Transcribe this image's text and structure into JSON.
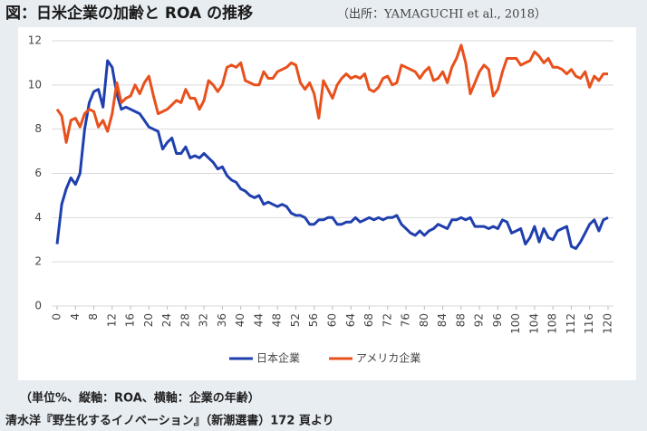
{
  "chart_data": {
    "type": "line",
    "title": "図：日米企業の加齢と ROA の推移",
    "subtitle": "（出所：YAMAGUCHI et al., 2018）",
    "notes": [
      "（単位%、縦軸：ROA、横軸：企業の年齢）",
      "清水洋『野生化するイノベーション』（新潮選書）172 頁より"
    ],
    "x": [
      0,
      1,
      2,
      3,
      4,
      5,
      6,
      7,
      8,
      9,
      10,
      11,
      12,
      13,
      14,
      15,
      16,
      17,
      18,
      19,
      20,
      21,
      22,
      23,
      24,
      25,
      26,
      27,
      28,
      29,
      30,
      31,
      32,
      33,
      34,
      35,
      36,
      37,
      38,
      39,
      40,
      41,
      42,
      43,
      44,
      45,
      46,
      47,
      48,
      49,
      50,
      51,
      52,
      53,
      54,
      55,
      56,
      57,
      58,
      59,
      60,
      61,
      62,
      63,
      64,
      65,
      66,
      67,
      68,
      69,
      70,
      71,
      72,
      73,
      74,
      75,
      76,
      77,
      78,
      79,
      80,
      81,
      82,
      83,
      84,
      85,
      86,
      87,
      88,
      89,
      90,
      91,
      92,
      93,
      94,
      95,
      96,
      97,
      98,
      99,
      100,
      101,
      102,
      103,
      104,
      105,
      106,
      107,
      108,
      109,
      110,
      111,
      112,
      113,
      114,
      115,
      116,
      117,
      118,
      119,
      120
    ],
    "series": [
      {
        "name": "日本企業",
        "color": "#1f3fae",
        "values": [
          2.8,
          4.6,
          5.3,
          5.8,
          5.5,
          6.0,
          8.0,
          9.2,
          9.7,
          9.8,
          9.0,
          11.1,
          10.8,
          9.6,
          8.9,
          9.0,
          8.9,
          8.8,
          8.7,
          8.4,
          8.1,
          8.0,
          7.9,
          7.1,
          7.4,
          7.6,
          6.9,
          6.9,
          7.2,
          6.7,
          6.8,
          6.7,
          6.9,
          6.7,
          6.5,
          6.2,
          6.3,
          5.9,
          5.7,
          5.6,
          5.3,
          5.2,
          5.0,
          4.9,
          5.0,
          4.6,
          4.7,
          4.6,
          4.5,
          4.6,
          4.5,
          4.2,
          4.1,
          4.1,
          4.0,
          3.7,
          3.7,
          3.9,
          3.9,
          4.0,
          4.0,
          3.7,
          3.7,
          3.8,
          3.8,
          4.0,
          3.8,
          3.9,
          4.0,
          3.9,
          4.0,
          3.9,
          4.0,
          4.0,
          4.1,
          3.7,
          3.5,
          3.3,
          3.2,
          3.4,
          3.2,
          3.4,
          3.5,
          3.7,
          3.6,
          3.5,
          3.9,
          3.9,
          4.0,
          3.9,
          4.0,
          3.6,
          3.6,
          3.6,
          3.5,
          3.6,
          3.5,
          3.9,
          3.8,
          3.3,
          3.4,
          3.5,
          2.8,
          3.1,
          3.6,
          2.9,
          3.5,
          3.1,
          3.0,
          3.4,
          3.5,
          3.6,
          2.7,
          2.6,
          2.9,
          3.3,
          3.7,
          3.9,
          3.4,
          3.9,
          4.0
        ]
      },
      {
        "name": "アメリカ企業",
        "color": "#e8501c",
        "values": [
          8.9,
          8.6,
          7.4,
          8.4,
          8.5,
          8.1,
          8.7,
          8.9,
          8.8,
          8.1,
          8.4,
          7.9,
          8.7,
          10.1,
          9.2,
          9.4,
          9.5,
          10.0,
          9.6,
          10.1,
          10.4,
          9.5,
          8.7,
          8.8,
          8.9,
          9.1,
          9.3,
          9.2,
          9.8,
          9.4,
          9.4,
          8.9,
          9.3,
          10.2,
          10.0,
          9.7,
          10.0,
          10.8,
          10.9,
          10.8,
          11.0,
          10.2,
          10.1,
          10.0,
          10.0,
          10.6,
          10.3,
          10.3,
          10.6,
          10.7,
          10.8,
          11.0,
          10.9,
          10.1,
          9.8,
          10.1,
          9.6,
          8.5,
          10.2,
          9.8,
          9.4,
          10.0,
          10.3,
          10.5,
          10.3,
          10.4,
          10.3,
          10.5,
          9.8,
          9.7,
          9.9,
          10.3,
          10.4,
          10.0,
          10.1,
          10.9,
          10.8,
          10.7,
          10.6,
          10.3,
          10.6,
          10.8,
          10.2,
          10.3,
          10.6,
          10.1,
          10.8,
          11.2,
          11.8,
          11.0,
          9.6,
          10.1,
          10.6,
          10.9,
          10.7,
          9.5,
          9.8,
          10.6,
          11.2,
          11.2,
          11.2,
          10.9,
          11.0,
          11.1,
          11.5,
          11.3,
          11.0,
          11.2,
          10.8,
          10.8,
          10.7,
          10.5,
          10.7,
          10.4,
          10.3,
          10.6,
          9.9,
          10.4,
          10.2,
          10.5,
          10.5
        ]
      }
    ],
    "xlim": [
      0,
      120
    ],
    "xticks": [
      0,
      4,
      8,
      12,
      16,
      20,
      24,
      28,
      32,
      36,
      40,
      44,
      48,
      52,
      56,
      60,
      64,
      68,
      72,
      76,
      80,
      84,
      88,
      92,
      96,
      100,
      104,
      108,
      112,
      116,
      120
    ],
    "ylim": [
      0,
      12
    ],
    "yticks": [
      0,
      2,
      4,
      6,
      8,
      10,
      12
    ],
    "grid": true,
    "legend": "bottom"
  }
}
